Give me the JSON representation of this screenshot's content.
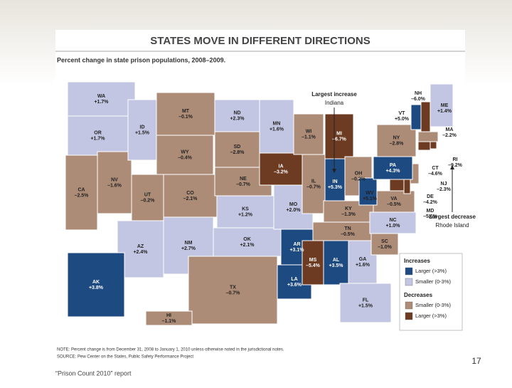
{
  "slide": {
    "title": "STATES MOVE IN DIFFERENT DIRECTIONS",
    "subtitle": "Percent change in state prison populations, 2008–2009.",
    "states": [
      {
        "abbr": "WA",
        "change": "+1.7%"
      },
      {
        "abbr": "OR",
        "change": "+1.7%"
      },
      {
        "abbr": "CA",
        "change": "–2.5%"
      },
      {
        "abbr": "NV",
        "change": "–1.6%"
      },
      {
        "abbr": "ID",
        "change": "+1.5%"
      },
      {
        "abbr": "MT",
        "change": "–0.1%"
      },
      {
        "abbr": "WY",
        "change": "–0.4%"
      },
      {
        "abbr": "UT",
        "change": "–0.2%"
      },
      {
        "abbr": "CO",
        "change": "–2.1%"
      },
      {
        "abbr": "AZ",
        "change": "+2.4%"
      },
      {
        "abbr": "NM",
        "change": "+2.7%"
      },
      {
        "abbr": "ND",
        "change": "+2.3%"
      },
      {
        "abbr": "SD",
        "change": "–2.8%"
      },
      {
        "abbr": "NE",
        "change": "–0.7%"
      },
      {
        "abbr": "KS",
        "change": "+1.2%"
      },
      {
        "abbr": "OK",
        "change": "+2.1%"
      },
      {
        "abbr": "TX",
        "change": "–0.7%"
      },
      {
        "abbr": "MN",
        "change": "+1.6%"
      },
      {
        "abbr": "IA",
        "change": "–3.2%"
      },
      {
        "abbr": "MO",
        "change": "+2.0%"
      },
      {
        "abbr": "AR",
        "change": "+3.1%"
      },
      {
        "abbr": "LA",
        "change": "+3.6%"
      },
      {
        "abbr": "WI",
        "change": "–1.1%"
      },
      {
        "abbr": "IL",
        "change": "–0.7%"
      },
      {
        "abbr": "MI",
        "change": "–6.7%"
      },
      {
        "abbr": "IN",
        "change": "+5.3%"
      },
      {
        "abbr": "OH",
        "change": "–0.2%"
      },
      {
        "abbr": "KY",
        "change": "–1.3%"
      },
      {
        "abbr": "TN",
        "change": "–0.5%"
      },
      {
        "abbr": "MS",
        "change": "–5.4%"
      },
      {
        "abbr": "AL",
        "change": "+3.5%"
      },
      {
        "abbr": "GA",
        "change": "+1.6%"
      },
      {
        "abbr": "FL",
        "change": "+1.5%"
      },
      {
        "abbr": "SC",
        "change": "–1.0%"
      },
      {
        "abbr": "NC",
        "change": "+1.0%"
      },
      {
        "abbr": "VA",
        "change": "–0.5%"
      },
      {
        "abbr": "WV",
        "change": "+5.1%"
      },
      {
        "abbr": "MD",
        "change": "–5.6%"
      },
      {
        "abbr": "DE",
        "change": "–4.2%"
      },
      {
        "abbr": "NJ",
        "change": "–2.3%"
      },
      {
        "abbr": "PA",
        "change": "+4.3%"
      },
      {
        "abbr": "NY",
        "change": "–2.8%"
      },
      {
        "abbr": "VT",
        "change": "+5.0%"
      },
      {
        "abbr": "NH",
        "change": "–6.0%"
      },
      {
        "abbr": "ME",
        "change": "+1.4%"
      },
      {
        "abbr": "MA",
        "change": "–2.2%"
      },
      {
        "abbr": "CT",
        "change": "–4.6%"
      },
      {
        "abbr": "RI",
        "change": "–9.2%"
      },
      {
        "abbr": "AK",
        "change": "+3.8%"
      },
      {
        "abbr": "HI",
        "change": "–1.1%"
      }
    ],
    "annotations": [
      {
        "heading": "Largest increase",
        "state": "Indiana"
      },
      {
        "heading": "Largest decrease",
        "state": "Rhode Island"
      }
    ],
    "legend": {
      "increases": "Increases",
      "increase_items": [
        {
          "label": "Larger (>3%)",
          "color": "#1d4a80"
        },
        {
          "label": "Smaller (0-3%)",
          "color": "#c3c6e2"
        }
      ],
      "decreases": "Decreases",
      "decrease_items": [
        {
          "label": "Smaller (0-3%)",
          "color": "#ad8c77"
        },
        {
          "label": "Larger (>3%)",
          "color": "#6c3b22"
        }
      ]
    },
    "note": "NOTE: Percent change is from December 31, 2008 to January 1, 2010 unless otherwise noted in the jurisdictional notes.",
    "source": "SOURCE: Pew Center on the States, Public Safety Performance Project",
    "page_number": "17",
    "footer": "“Prison Count 2010” report"
  }
}
